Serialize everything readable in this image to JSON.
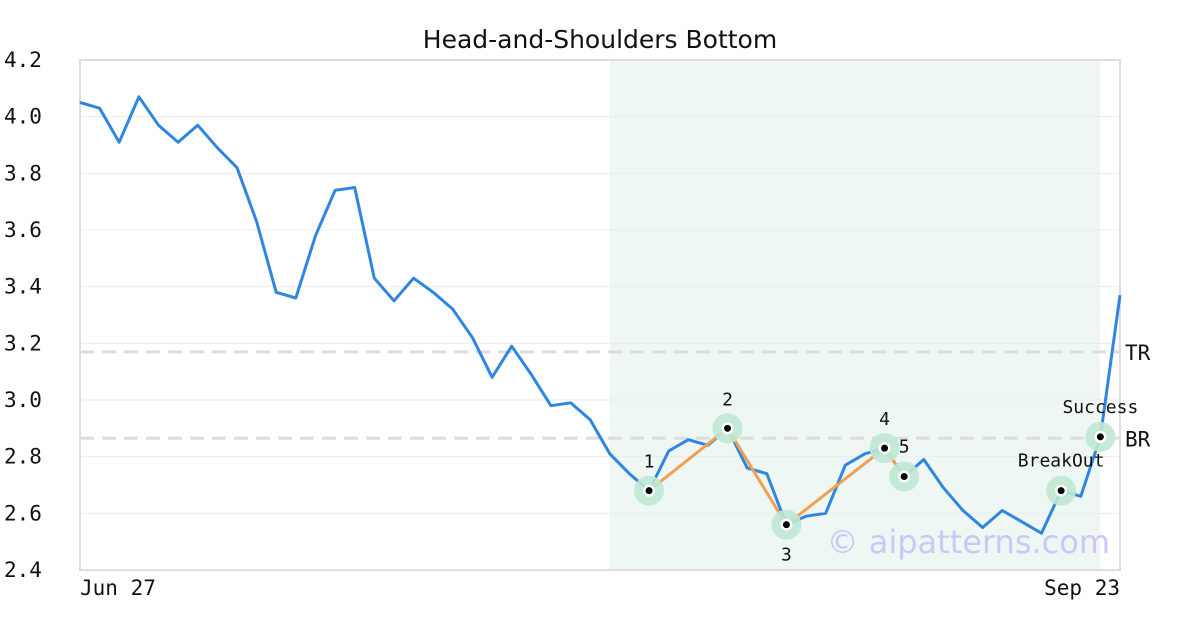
{
  "chart_data": {
    "type": "line",
    "title": "Head-and-Shoulders Bottom",
    "xlabel": "",
    "ylabel": "",
    "ylim": [
      2.4,
      4.2
    ],
    "yticks": [
      "2.4",
      "2.6",
      "2.8",
      "3.0",
      "3.2",
      "3.4",
      "3.6",
      "3.8",
      "4.0",
      "4.2"
    ],
    "xtick_labels": [
      "Jun 27",
      "Sep 23"
    ],
    "grid": "horizontal",
    "series": [
      {
        "values": [
          4.05,
          4.03,
          3.91,
          4.07,
          3.97,
          3.91,
          3.97,
          3.89,
          3.82,
          3.63,
          3.38,
          3.36,
          3.58,
          3.74,
          3.75,
          3.43,
          3.35,
          3.43,
          3.38,
          3.32,
          3.22,
          3.08,
          3.19,
          3.09,
          2.98,
          2.99,
          2.93,
          2.81,
          2.74,
          2.68,
          2.82,
          2.86,
          2.84,
          2.9,
          2.76,
          2.74,
          2.56,
          2.59,
          2.6,
          2.77,
          2.81,
          2.83,
          2.73,
          2.79,
          2.69,
          2.61,
          2.55,
          2.61,
          2.57,
          2.53,
          2.68,
          2.66,
          2.87,
          3.37
        ]
      }
    ],
    "pattern_points": [
      {
        "label": "1",
        "index": 29,
        "value": 2.68
      },
      {
        "label": "2",
        "index": 33,
        "value": 2.9
      },
      {
        "label": "3",
        "index": 36,
        "value": 2.56
      },
      {
        "label": "4",
        "index": 41,
        "value": 2.83
      },
      {
        "label": "5",
        "index": 42,
        "value": 2.73
      }
    ],
    "signals": [
      {
        "label": "BreakOut",
        "index": 50,
        "value": 2.68
      },
      {
        "label": "Success",
        "index": 52,
        "value": 2.87
      }
    ],
    "levels": [
      {
        "label": "TR",
        "value": 3.17
      },
      {
        "label": "BR",
        "value": 2.865
      }
    ],
    "pattern_range": {
      "start_index": 27,
      "end_index": 52
    },
    "watermark": "© aipatterns.com",
    "colors": {
      "price_line": "#2f86e0",
      "pattern_line": "#f0a050",
      "pattern_shade": "#eef7f3",
      "marker_halo": "#bfe8d4",
      "level_line": "#dddddd",
      "axis": "#dddddd"
    }
  }
}
